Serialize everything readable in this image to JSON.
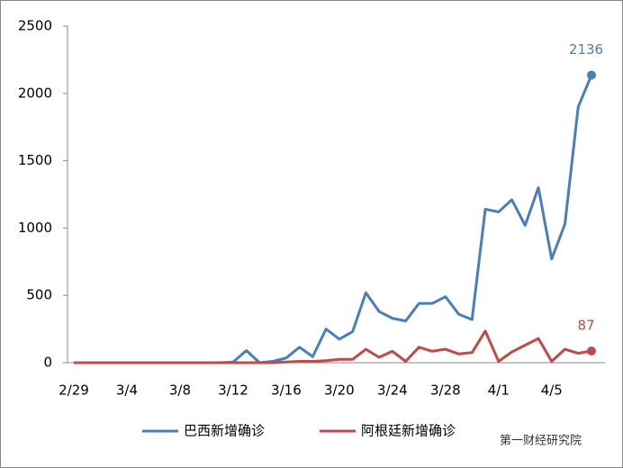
{
  "chart_data": {
    "type": "line",
    "categories": [
      "2/29",
      null,
      null,
      null,
      "3/4",
      null,
      null,
      null,
      "3/8",
      null,
      null,
      null,
      "3/12",
      null,
      null,
      null,
      "3/16",
      null,
      null,
      null,
      "3/20",
      null,
      null,
      null,
      "3/24",
      null,
      null,
      null,
      "3/28",
      null,
      null,
      null,
      "4/1",
      null,
      null,
      null,
      "4/5",
      null,
      null,
      null
    ],
    "series": [
      {
        "name": "巴西新增确诊",
        "color": "#4a7ebb",
        "values": [
          0,
          0,
          0,
          0,
          0,
          0,
          0,
          0,
          0,
          0,
          0,
          0,
          5,
          90,
          0,
          10,
          35,
          115,
          45,
          250,
          175,
          230,
          520,
          380,
          330,
          310,
          440,
          440,
          490,
          360,
          320,
          1140,
          1120,
          1210,
          1020,
          1300,
          770,
          1030,
          1900,
          2136
        ]
      },
      {
        "name": "阿根廷新增确诊",
        "color": "#be4b48",
        "values": [
          0,
          0,
          0,
          0,
          0,
          0,
          0,
          0,
          0,
          0,
          0,
          0,
          0,
          0,
          0,
          0,
          5,
          10,
          10,
          15,
          25,
          25,
          100,
          40,
          85,
          10,
          115,
          85,
          100,
          65,
          75,
          235,
          10,
          80,
          130,
          180,
          10,
          100,
          70,
          87
        ]
      }
    ],
    "ylim": [
      0,
      2500
    ],
    "yticks": [
      0,
      500,
      1000,
      1500,
      2000,
      2500
    ],
    "grid": false,
    "legend": "bottom"
  },
  "watermark": "第一财经研究院"
}
